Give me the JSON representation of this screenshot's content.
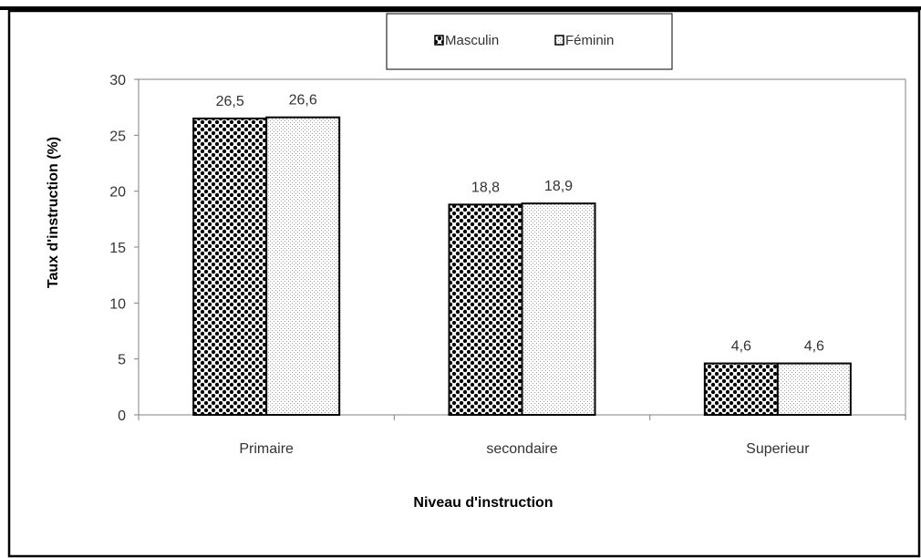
{
  "chart_data": {
    "type": "bar",
    "title": "",
    "categories": [
      "Primaire",
      "secondaire",
      "Superieur"
    ],
    "series": [
      {
        "name": "Masculin",
        "values": [
          26.5,
          18.8,
          4.6
        ],
        "labels": [
          "26,5",
          "18,8",
          "4,6"
        ],
        "pattern": "checker-dots"
      },
      {
        "name": "Féminin",
        "values": [
          26.6,
          18.9,
          4.6
        ],
        "labels": [
          "26,6",
          "18,9",
          "4,6"
        ],
        "pattern": "fine-stipple"
      }
    ],
    "xlabel": "Niveau d'instruction",
    "ylabel": "Taux d'instruction (%)",
    "ylim": [
      0,
      30
    ],
    "yticks": [
      0,
      5,
      10,
      15,
      20,
      25,
      30
    ],
    "grid": false,
    "legend_position": "top",
    "colors": {
      "bar_outline": "#000000",
      "axis": "#808080",
      "text": "#333333",
      "frame": "#000000"
    }
  }
}
